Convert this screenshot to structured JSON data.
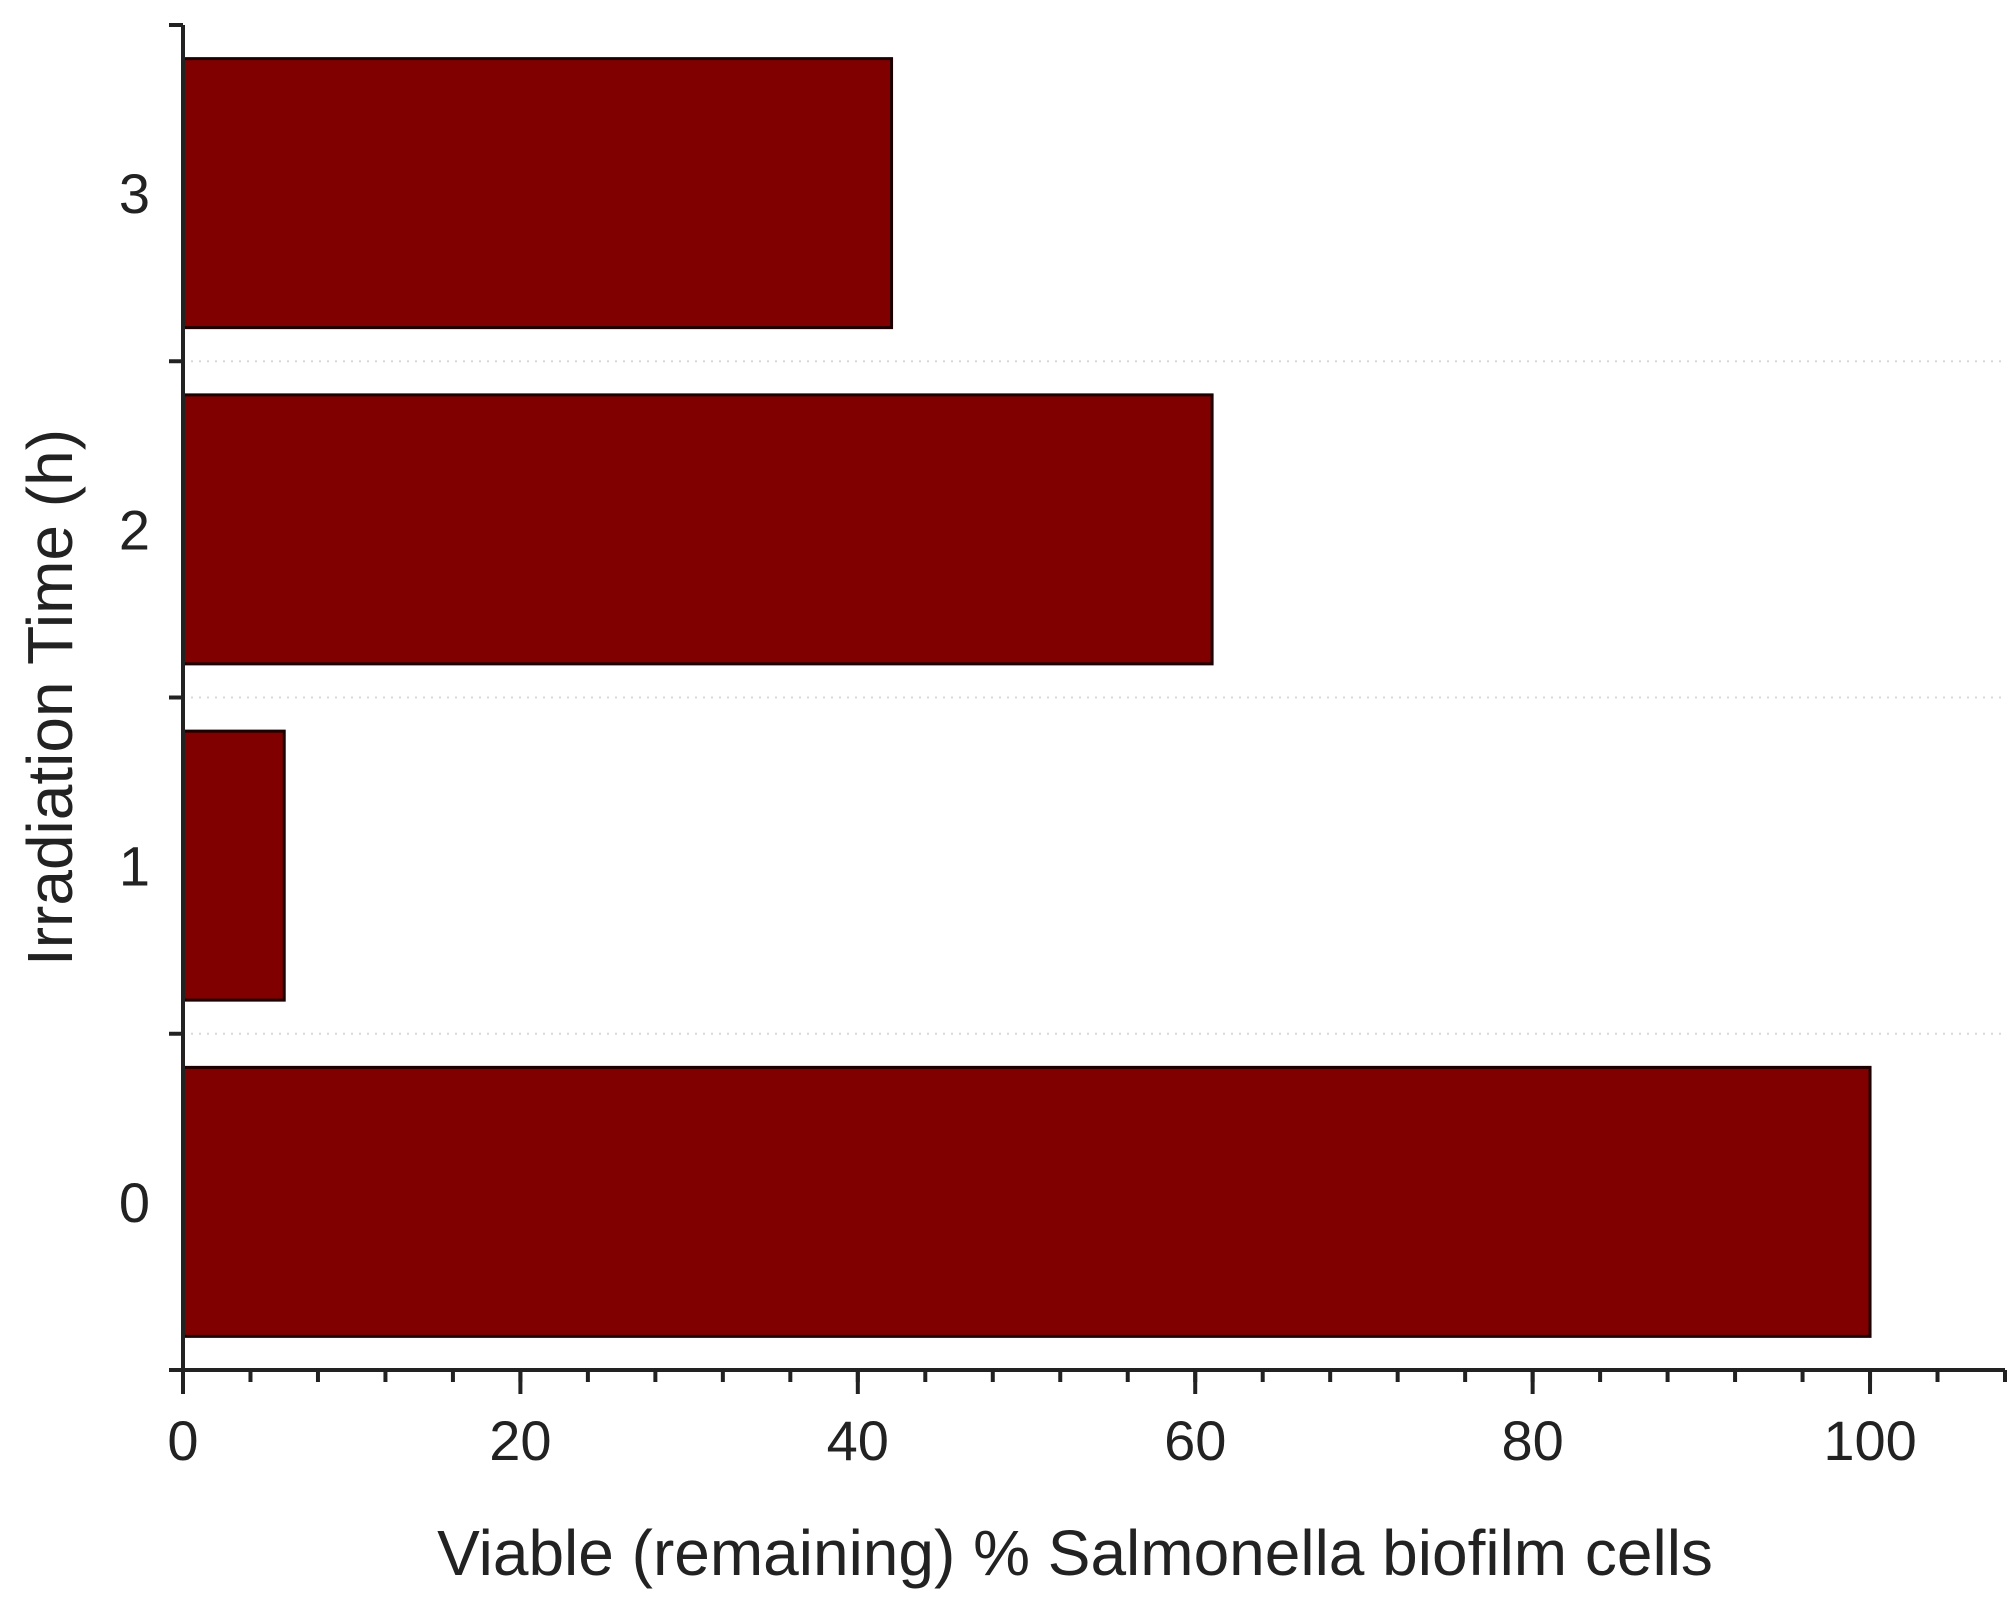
{
  "chart_data": {
    "type": "bar",
    "orientation": "horizontal",
    "categories": [
      "0",
      "1",
      "2",
      "3"
    ],
    "values": [
      100,
      6,
      61,
      42
    ],
    "xlabel": "Viable (remaining) % Salmonella biofilm cells",
    "ylabel": "Irradiation Time (h)",
    "xlim": [
      0,
      108
    ],
    "xticks": [
      0,
      20,
      40,
      60,
      80,
      100
    ],
    "xtick_labels": [
      "0",
      "20",
      "40",
      "60",
      "80",
      "100"
    ],
    "minor_tick_step": 4,
    "bar_color": "#800000",
    "grid": true
  }
}
